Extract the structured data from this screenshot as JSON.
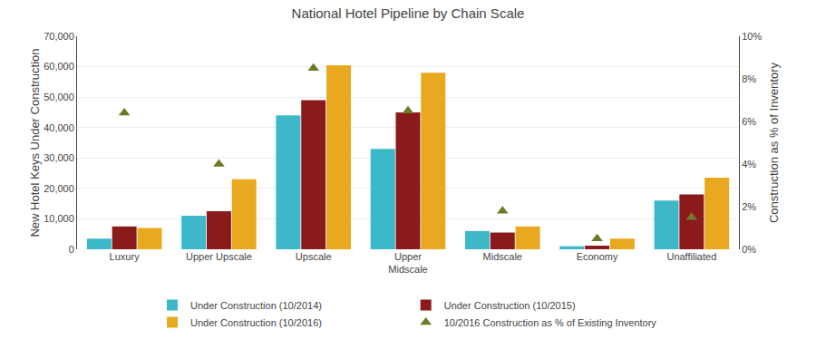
{
  "chart_data": {
    "type": "bar",
    "title": "National Hotel Pipeline by Chain Scale",
    "categories": [
      "Luxury",
      "Upper Upscale",
      "Upscale",
      "Upper\nMidscale",
      "Midscale",
      "Economy",
      "Unaffiliated"
    ],
    "series": [
      {
        "name": "Under Construction (10/2014)",
        "color": "#3CB8C8",
        "values": [
          3500,
          11000,
          44000,
          33000,
          6000,
          1000,
          16000
        ]
      },
      {
        "name": "Under Construction (10/2015)",
        "color": "#8B1A1A",
        "values": [
          7500,
          12500,
          49000,
          45000,
          5500,
          1200,
          18000
        ]
      },
      {
        "name": "Under Construction (10/2016)",
        "color": "#E8A820",
        "values": [
          7000,
          23000,
          60500,
          58000,
          7500,
          3500,
          23500
        ]
      },
      {
        "name": "10/2016 Construction as % of Existing Inventory",
        "type": "scatter",
        "marker": "triangle-up",
        "color": "#6B7A28",
        "axis": "y2",
        "values": [
          0.064,
          0.04,
          0.085,
          0.065,
          0.018,
          0.005,
          0.015
        ]
      }
    ],
    "ylabel": "New Hotel Keys Under Construction",
    "y2label": "Construction as % of Inventory",
    "ylim": [
      0,
      70000
    ],
    "yticks": [
      0,
      {
        "value": 10000,
        "label": "10,000"
      },
      {
        "value": 20000,
        "label": "20,000"
      },
      {
        "value": 30000,
        "label": "30,000"
      },
      {
        "value": 40000,
        "label": "40,000"
      },
      {
        "value": 50000,
        "label": "50,000"
      },
      {
        "value": 60000,
        "label": "60,000"
      },
      {
        "value": 70000,
        "label": "70,000"
      }
    ],
    "y2lim": [
      0,
      0.1
    ],
    "y2ticks": [
      {
        "value": 0,
        "label": "0%"
      },
      {
        "value": 0.02,
        "label": "2%"
      },
      {
        "value": 0.04,
        "label": "4%"
      },
      {
        "value": 0.06,
        "label": "6%"
      },
      {
        "value": 0.08,
        "label": "8%"
      },
      {
        "value": 0.1,
        "label": "10%"
      }
    ],
    "grid": true,
    "legend": "bottom"
  }
}
